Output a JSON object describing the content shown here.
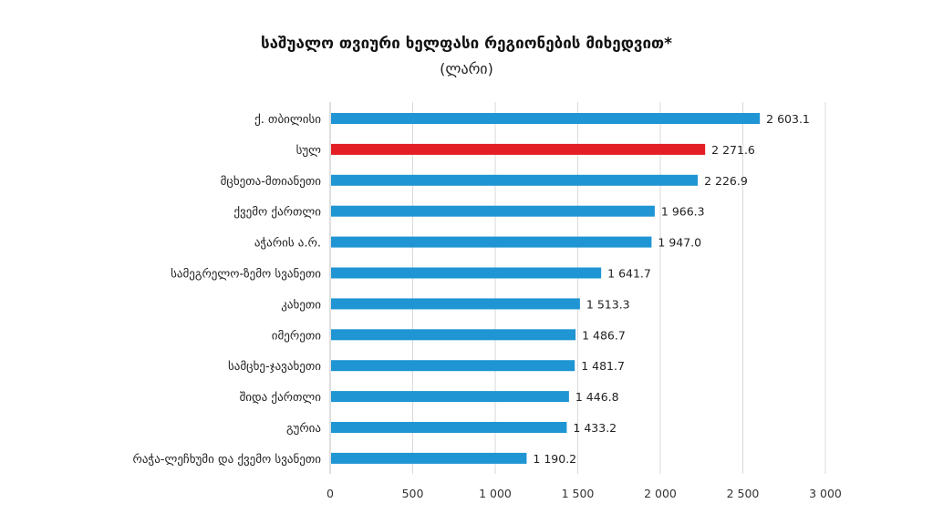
{
  "chart_data": {
    "type": "bar",
    "orientation": "horizontal",
    "title": "საშუალო თვიური ხელფასი რეგიონების მიხედვით*",
    "subtitle": "(ლარი)",
    "categories": [
      "ქ. თბილისი",
      "სულ",
      "მცხეთა-მთიანეთი",
      "ქვემო ქართლი",
      "აჭარის ა.რ.",
      "სამეგრელო-ზემო სვანეთი",
      "კახეთი",
      "იმერეთი",
      "სამცხე-ჯავახეთი",
      "შიდა ქართლი",
      "გურია",
      "რაჭა-ლეჩხუმი და ქვემო სვანეთი"
    ],
    "values": [
      2603.1,
      2271.6,
      2226.9,
      1966.3,
      1947.0,
      1641.7,
      1513.3,
      1486.7,
      1481.7,
      1446.8,
      1433.2,
      1190.2
    ],
    "value_labels": [
      "2 603.1",
      "2 271.6",
      "2 226.9",
      "1 966.3",
      "1 947.0",
      "1 641.7",
      "1 513.3",
      "1 486.7",
      "1 481.7",
      "1 446.8",
      "1 433.2",
      "1 190.2"
    ],
    "highlight_index": 1,
    "xlim": [
      0,
      3000
    ],
    "xticks": [
      0,
      500,
      1000,
      1500,
      2000,
      2500,
      3000
    ],
    "xtick_labels": [
      "0",
      "500",
      "1 000",
      "1 500",
      "2 000",
      "2 500",
      "3 000"
    ],
    "grid": true,
    "colors": {
      "bar": "#1f95d3",
      "highlight": "#e31e24",
      "grid": "#d9d9d9"
    }
  }
}
